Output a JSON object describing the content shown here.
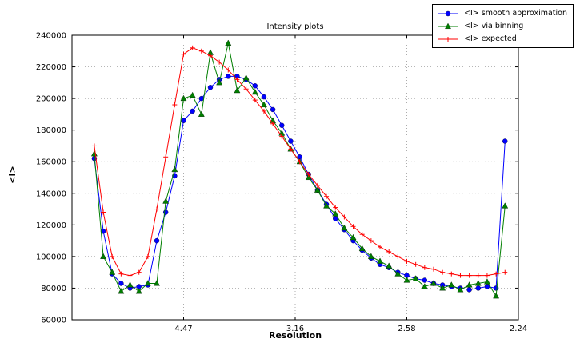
{
  "figure": {
    "background": "#ffffff"
  },
  "chart_data": {
    "type": "line",
    "title": "Intensity plots",
    "xlabel": "Resolution",
    "ylabel": "<I>",
    "x_axis_note": "resolution ticks labeled in Angstrom, spacing linear in 1/d^2",
    "xlim": [
      0,
      0.2
    ],
    "ylim": [
      60000,
      240000
    ],
    "grid": true,
    "legend_position": "top-right-outside",
    "x_ticks": [
      {
        "pos": 0.05,
        "label": "4.47"
      },
      {
        "pos": 0.1,
        "label": "3.16"
      },
      {
        "pos": 0.15,
        "label": "2.58"
      },
      {
        "pos": 0.2,
        "label": "2.24"
      }
    ],
    "y_ticks": [
      60000,
      80000,
      100000,
      120000,
      140000,
      160000,
      180000,
      200000,
      220000,
      240000
    ],
    "x": [
      0.01,
      0.014,
      0.018,
      0.022,
      0.026,
      0.03,
      0.034,
      0.038,
      0.042,
      0.046,
      0.05,
      0.054,
      0.058,
      0.062,
      0.066,
      0.07,
      0.074,
      0.078,
      0.082,
      0.086,
      0.09,
      0.094,
      0.098,
      0.102,
      0.106,
      0.11,
      0.114,
      0.118,
      0.122,
      0.126,
      0.13,
      0.134,
      0.138,
      0.142,
      0.146,
      0.15,
      0.154,
      0.158,
      0.162,
      0.166,
      0.17,
      0.174,
      0.178,
      0.182,
      0.186,
      0.19,
      0.194
    ],
    "series": [
      {
        "name": "<I> smooth approximation",
        "color": "#0000ff",
        "marker": "circle",
        "values": [
          162000,
          116000,
          89000,
          83000,
          80000,
          81000,
          82000,
          110000,
          128000,
          151000,
          186000,
          192000,
          200000,
          207000,
          212000,
          214000,
          214000,
          212000,
          208000,
          201000,
          193000,
          183000,
          173000,
          163000,
          152000,
          142000,
          133000,
          124000,
          117000,
          110000,
          104000,
          99000,
          95000,
          93000,
          90000,
          88000,
          86000,
          85000,
          83000,
          82000,
          81000,
          80000,
          79000,
          80000,
          81000,
          80000,
          173000
        ]
      },
      {
        "name": "<I> via binning",
        "color": "#007f00",
        "marker": "triangle",
        "values": [
          165000,
          100000,
          90000,
          78000,
          82000,
          78000,
          83000,
          83000,
          135000,
          155000,
          200000,
          202000,
          190000,
          229000,
          210000,
          235000,
          205000,
          213000,
          204000,
          196000,
          186000,
          178000,
          168000,
          160000,
          150000,
          142000,
          132000,
          127000,
          118000,
          112000,
          105000,
          100000,
          97000,
          94000,
          89000,
          85000,
          86000,
          81000,
          83000,
          80000,
          82000,
          79000,
          82000,
          83000,
          84000,
          75000,
          132000
        ]
      },
      {
        "name": "<I> expected",
        "color": "#ff0000",
        "marker": "plus",
        "values": [
          170000,
          128000,
          100000,
          89000,
          88000,
          90000,
          100000,
          130000,
          163000,
          196000,
          228000,
          232000,
          230000,
          227000,
          223000,
          218000,
          212000,
          206000,
          199000,
          192000,
          184000,
          176000,
          168000,
          160000,
          152000,
          145000,
          138000,
          131000,
          125000,
          119000,
          114000,
          110000,
          106000,
          103000,
          100000,
          97000,
          95000,
          93000,
          92000,
          90000,
          89000,
          88000,
          88000,
          88000,
          88000,
          89000,
          90000
        ]
      }
    ]
  },
  "colors": {
    "grid": "#8a8a8a",
    "axis": "#000000",
    "background": "#ffffff"
  }
}
